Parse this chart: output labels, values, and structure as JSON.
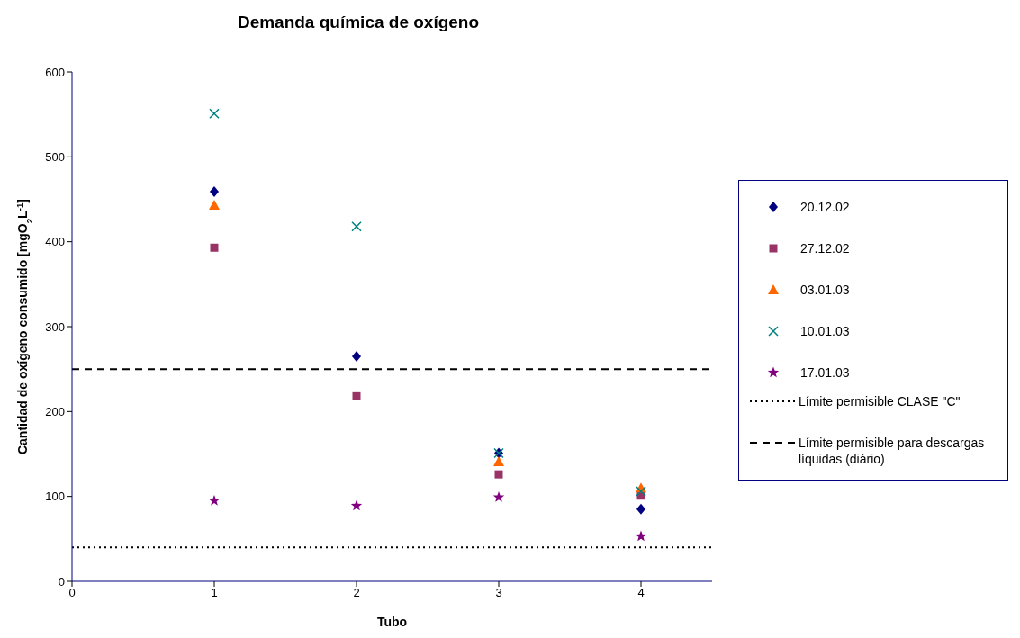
{
  "chart_data": {
    "type": "scatter",
    "title": "Demanda química de oxígeno",
    "xlabel": "Tubo",
    "ylabel": "Cantidad de oxígeno consumido [mgO$_{2}$L$^{-1}$]",
    "x": [
      1,
      2,
      3,
      4
    ],
    "xlim": [
      0,
      4.5
    ],
    "xticks": [
      0,
      1,
      2,
      3,
      4
    ],
    "ylim": [
      0,
      600
    ],
    "yticks": [
      0,
      100,
      200,
      300,
      400,
      500,
      600
    ],
    "grid": false,
    "legend": "right",
    "series": [
      {
        "name": "20.12.02",
        "color": "#000080",
        "marker": "diamond",
        "values": [
          459,
          265,
          151,
          85
        ]
      },
      {
        "name": "27.12.02",
        "color": "#993366",
        "marker": "square",
        "values": [
          393,
          218,
          126,
          101
        ]
      },
      {
        "name": "03.01.03",
        "color": "#ff6600",
        "marker": "triangle",
        "values": [
          443,
          null,
          141,
          110
        ]
      },
      {
        "name": "10.01.03",
        "color": "#008080",
        "marker": "cross",
        "values": [
          551,
          418,
          151,
          106
        ]
      },
      {
        "name": "17.01.03",
        "color": "#800080",
        "marker": "star",
        "values": [
          95,
          89,
          99,
          53
        ]
      }
    ],
    "ref_lines": [
      {
        "axis": "y",
        "value": 40,
        "label": "Límite permisible CLASE \"C\"",
        "color": "#000000",
        "line_style": "dotted"
      },
      {
        "axis": "y",
        "value": 250,
        "label": "Límite permisible para descargas líquidas (diário)",
        "color": "#000000",
        "line_style": "dashed"
      }
    ]
  }
}
